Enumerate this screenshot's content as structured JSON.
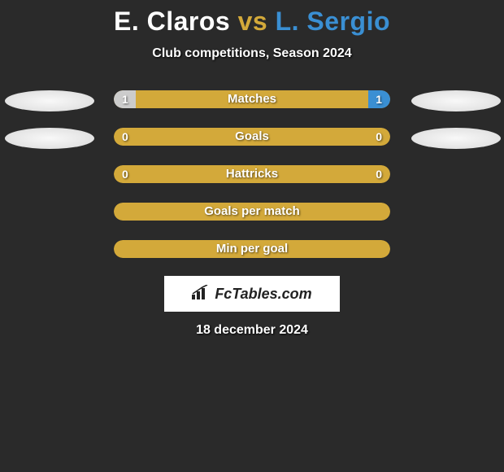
{
  "title": {
    "player1": "E. Claros",
    "vs": "vs",
    "player2": "L. Sergio",
    "player1_color": "#ffffff",
    "vs_color": "#d3a93a",
    "player2_color": "#3a8fd3"
  },
  "subtitle": "Club competitions, Season 2024",
  "background_color": "#2a2a2a",
  "ellipse_color": "#eeeeee",
  "bar_border_radius": 11,
  "rows": [
    {
      "label": "Matches",
      "left_value": "1",
      "right_value": "1",
      "show_ellipses": true,
      "bg_color": "#d3a93a",
      "left_fill_color": "#cccccc",
      "left_fill_pct": 8,
      "right_fill_color": "#3a8fd3",
      "right_fill_pct": 8
    },
    {
      "label": "Goals",
      "left_value": "0",
      "right_value": "0",
      "show_ellipses": true,
      "bg_color": "#d3a93a",
      "left_fill_color": "#cccccc",
      "left_fill_pct": 0,
      "right_fill_color": "#3a8fd3",
      "right_fill_pct": 0
    },
    {
      "label": "Hattricks",
      "left_value": "0",
      "right_value": "0",
      "show_ellipses": false,
      "bg_color": "#d3a93a",
      "left_fill_color": "#cccccc",
      "left_fill_pct": 0,
      "right_fill_color": "#3a8fd3",
      "right_fill_pct": 0
    },
    {
      "label": "Goals per match",
      "left_value": "",
      "right_value": "",
      "show_ellipses": false,
      "bg_color": "#d3a93a",
      "left_fill_color": "#cccccc",
      "left_fill_pct": 0,
      "right_fill_color": "#3a8fd3",
      "right_fill_pct": 0
    },
    {
      "label": "Min per goal",
      "left_value": "",
      "right_value": "",
      "show_ellipses": false,
      "bg_color": "#d3a93a",
      "left_fill_color": "#cccccc",
      "left_fill_pct": 0,
      "right_fill_color": "#3a8fd3",
      "right_fill_pct": 0
    }
  ],
  "logo": {
    "text": "FcTables.com",
    "icon_color": "#222222",
    "box_bg": "#ffffff"
  },
  "date": "18 december 2024"
}
